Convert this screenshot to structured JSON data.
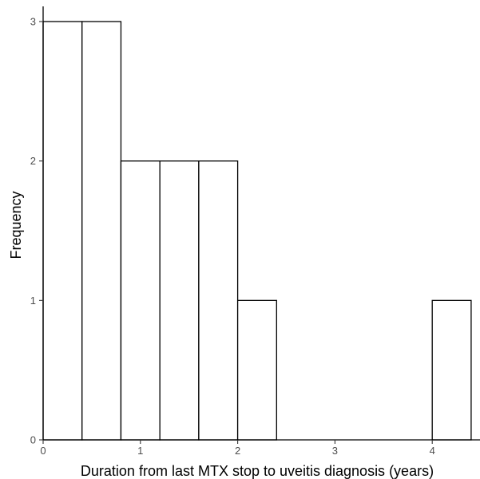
{
  "chart_data": {
    "type": "bar",
    "subtype": "histogram",
    "xlabel": "Duration from last MTX stop to uveitis diagnosis (years)",
    "ylabel": "Frequency",
    "bins": [
      {
        "start": 0.0,
        "end": 0.4,
        "count": 3
      },
      {
        "start": 0.4,
        "end": 0.8,
        "count": 3
      },
      {
        "start": 0.8,
        "end": 1.2,
        "count": 2
      },
      {
        "start": 1.2,
        "end": 1.6,
        "count": 2
      },
      {
        "start": 1.6,
        "end": 2.0,
        "count": 2
      },
      {
        "start": 2.0,
        "end": 2.4,
        "count": 1
      },
      {
        "start": 2.4,
        "end": 2.8,
        "count": 0
      },
      {
        "start": 2.8,
        "end": 3.2,
        "count": 0
      },
      {
        "start": 3.2,
        "end": 3.6,
        "count": 0
      },
      {
        "start": 3.6,
        "end": 4.0,
        "count": 0
      },
      {
        "start": 4.0,
        "end": 4.4,
        "count": 1
      }
    ],
    "xlim": [
      0,
      4.4
    ],
    "ylim": [
      0,
      3
    ],
    "xticks": [
      0,
      1,
      2,
      3,
      4
    ],
    "yticks": [
      0,
      1,
      2,
      3
    ],
    "bar_fill": "#ffffff",
    "bar_stroke": "#000000",
    "grid": false
  }
}
